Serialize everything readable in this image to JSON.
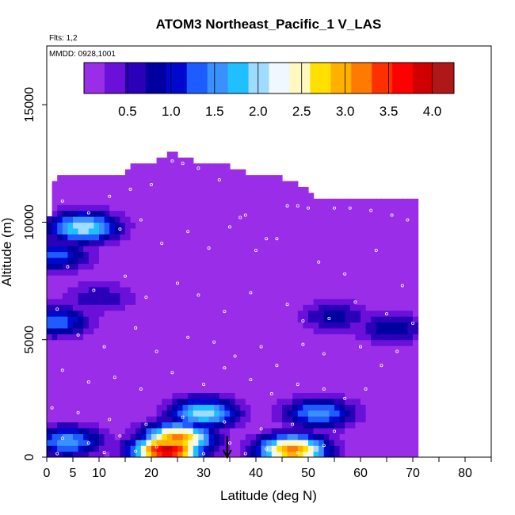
{
  "chart_data": {
    "type": "heatmap",
    "title": "ATOM3 Northeast_Pacific_1 V_LAS",
    "flights_label": "Flts: 1,2",
    "date_label": "MMDD: 0928,1001",
    "xlabel": "Latitude (deg N)",
    "ylabel": "Altitude (m)",
    "xlim": [
      0,
      85
    ],
    "ylim": [
      0,
      17500
    ],
    "x_ticks": [
      0,
      5,
      10,
      20,
      30,
      40,
      50,
      60,
      70,
      80
    ],
    "x_tick_labels": [
      "0",
      "5",
      "10",
      "20",
      "30",
      "40",
      "50",
      "60",
      "70",
      "80"
    ],
    "y_ticks": [
      0,
      5000,
      10000,
      15000
    ],
    "y_tick_labels": [
      "0",
      "5000",
      "10000",
      "15000"
    ],
    "colorbar": {
      "range": [
        0,
        4.25
      ],
      "ticks": [
        0.5,
        1.0,
        1.5,
        2.0,
        2.5,
        3.0,
        3.5,
        4.0
      ],
      "tick_labels": [
        "0.5",
        "1.0",
        "1.5",
        "2.0",
        "2.5",
        "3.0",
        "3.5",
        "4.0"
      ],
      "colors": [
        "#9a2ee8",
        "#6a10d8",
        "#2a00b8",
        "#0000a0",
        "#0008d0",
        "#1e5cff",
        "#3a90ff",
        "#20c0ff",
        "#a0dcff",
        "#f0f8ff",
        "#fff8c0",
        "#ffe000",
        "#ffb000",
        "#ff7a00",
        "#ff3000",
        "#ff0000",
        "#d00000",
        "#b01818"
      ],
      "position": "inset top"
    },
    "envelope": {
      "latitudes": [
        0,
        1,
        2,
        5,
        10,
        15,
        16,
        20,
        23,
        25,
        30,
        35,
        40,
        45,
        50,
        52,
        55,
        58,
        60,
        62,
        65,
        67,
        70,
        71
      ],
      "top_altitude": [
        8800,
        11300,
        11900,
        11900,
        11900,
        11900,
        12300,
        12300,
        12800,
        12800,
        12300,
        12300,
        11800,
        11800,
        11300,
        10800,
        10800,
        10800,
        10800,
        10800,
        10800,
        10800,
        10800,
        10800
      ]
    },
    "field": {
      "background_value": 0.1,
      "features": [
        {
          "lat": 7,
          "alt": 9800,
          "value": 2.1
        },
        {
          "lat": 1.5,
          "alt": 8600,
          "value": 1.3
        },
        {
          "lat": 1.5,
          "alt": 5800,
          "value": 1.4
        },
        {
          "lat": 10,
          "alt": 6800,
          "value": 0.7
        },
        {
          "lat": 55,
          "alt": 6000,
          "value": 0.8
        },
        {
          "lat": 66,
          "alt": 5500,
          "value": 0.9
        },
        {
          "lat": 30,
          "alt": 1900,
          "value": 2.0
        },
        {
          "lat": 52,
          "alt": 1900,
          "value": 1.6
        },
        {
          "lat": 25,
          "alt": 800,
          "value": 3.2
        },
        {
          "lat": 23,
          "alt": 300,
          "value": 3.9
        },
        {
          "lat": 47,
          "alt": 300,
          "value": 3.2
        },
        {
          "lat": 4,
          "alt": 700,
          "value": 1.6
        }
      ]
    },
    "observations": [
      [
        16,
        11400
      ],
      [
        20,
        11600
      ],
      [
        24,
        12600
      ],
      [
        26,
        12500
      ],
      [
        29,
        12300
      ],
      [
        33,
        11800
      ],
      [
        38,
        10300
      ],
      [
        42,
        9300
      ],
      [
        46,
        10700
      ],
      [
        48,
        10700
      ],
      [
        50,
        10600
      ],
      [
        55,
        10600
      ],
      [
        58,
        10600
      ],
      [
        62,
        10500
      ],
      [
        66,
        10300
      ],
      [
        69,
        10100
      ],
      [
        3,
        10900
      ],
      [
        8,
        10400
      ],
      [
        12,
        11100
      ],
      [
        14,
        9700
      ],
      [
        18,
        10100
      ],
      [
        22,
        9100
      ],
      [
        27,
        9600
      ],
      [
        31,
        8900
      ],
      [
        35,
        9800
      ],
      [
        37,
        10200
      ],
      [
        40,
        8800
      ],
      [
        44,
        9300
      ],
      [
        52,
        8300
      ],
      [
        57,
        7800
      ],
      [
        63,
        8800
      ],
      [
        68,
        7300
      ],
      [
        4,
        8100
      ],
      [
        9,
        7100
      ],
      [
        15,
        7700
      ],
      [
        19,
        6800
      ],
      [
        25,
        7400
      ],
      [
        29,
        6900
      ],
      [
        34,
        6200
      ],
      [
        39,
        7000
      ],
      [
        46,
        6500
      ],
      [
        49,
        5800
      ],
      [
        54,
        5900
      ],
      [
        59,
        6600
      ],
      [
        65,
        6100
      ],
      [
        70,
        5700
      ],
      [
        2,
        6300
      ],
      [
        6,
        5200
      ],
      [
        11,
        4700
      ],
      [
        17,
        5500
      ],
      [
        21,
        4500
      ],
      [
        27,
        5100
      ],
      [
        32,
        4900
      ],
      [
        36,
        4300
      ],
      [
        41,
        4700
      ],
      [
        44,
        3900
      ],
      [
        49,
        4800
      ],
      [
        53,
        4400
      ],
      [
        60,
        4700
      ],
      [
        64,
        3900
      ],
      [
        67,
        4500
      ],
      [
        3,
        3700
      ],
      [
        8,
        3200
      ],
      [
        13,
        3400
      ],
      [
        18,
        2900
      ],
      [
        24,
        3600
      ],
      [
        30,
        3100
      ],
      [
        34,
        3800
      ],
      [
        39,
        3300
      ],
      [
        43,
        2700
      ],
      [
        48,
        3100
      ],
      [
        53,
        2900
      ],
      [
        57,
        2500
      ],
      [
        61,
        2900
      ],
      [
        1,
        2100
      ],
      [
        6,
        1900
      ],
      [
        12,
        1600
      ],
      [
        19,
        1400
      ],
      [
        26,
        1700
      ],
      [
        34,
        1500
      ],
      [
        41,
        1200
      ],
      [
        47,
        1400
      ],
      [
        55,
        1100
      ],
      [
        3,
        800
      ],
      [
        8,
        600
      ],
      [
        14,
        900
      ],
      [
        21,
        450
      ],
      [
        28,
        800
      ],
      [
        35,
        600
      ],
      [
        42,
        350
      ],
      [
        48,
        200
      ],
      [
        53,
        500
      ],
      [
        2,
        150
      ],
      [
        11,
        200
      ],
      [
        17,
        250
      ],
      [
        30,
        150
      ],
      [
        38,
        150
      ]
    ],
    "annotation": {
      "type": "arrow",
      "lat": 34.5,
      "alt_from": 900,
      "alt_to": 0
    }
  }
}
